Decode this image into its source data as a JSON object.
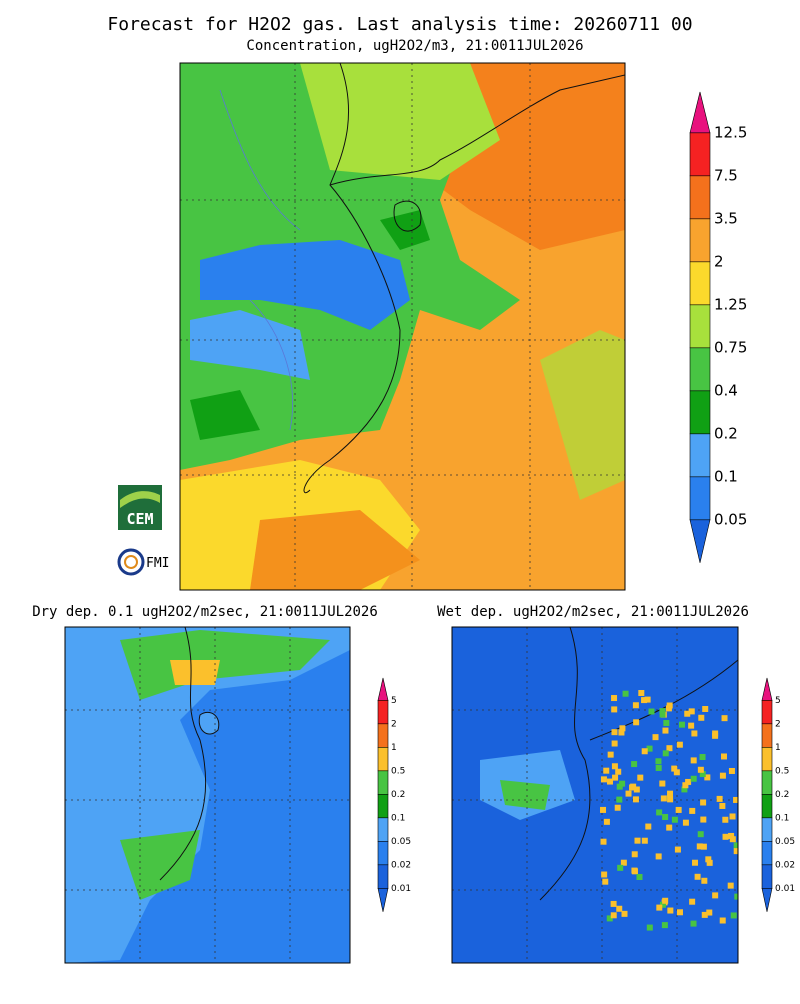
{
  "header": {
    "title": "Forecast for H2O2 gas. Last analysis time: 20260711 00"
  },
  "panels": [
    {
      "title": "Concentration, ugH2O2/m3, 21:0011JUL2026",
      "legend": {
        "labels": [
          "12.5",
          "7.5",
          "3.5",
          "2",
          "1.25",
          "0.75",
          "0.4",
          "0.2",
          "0.1",
          "0.05"
        ],
        "colors": [
          "#e8127e",
          "#f52222",
          "#f4711c",
          "#f8a32e",
          "#fbd92c",
          "#a8e03c",
          "#48c443",
          "#10a014",
          "#4ea3f5",
          "#2a80ee",
          "#1a62dc"
        ]
      }
    },
    {
      "title": "Dry dep. 0.1 ugH2O2/m2sec, 21:0011JUL2026",
      "legend": {
        "labels": [
          "5",
          "2",
          "1",
          "0.5",
          "0.2",
          "0.1",
          "0.05",
          "0.02",
          "0.01"
        ],
        "colors": [
          "#e8127e",
          "#f52222",
          "#f4711c",
          "#fbc02c",
          "#48c443",
          "#10a014",
          "#4ea3f5",
          "#2a80ee",
          "#1a62dc",
          "#1a62dc"
        ]
      }
    },
    {
      "title": "Wet dep. ugH2O2/m2sec, 21:0011JUL2026",
      "legend": {
        "labels": [
          "5",
          "2",
          "1",
          "0.5",
          "0.2",
          "0.1",
          "0.05",
          "0.02",
          "0.01"
        ],
        "colors": [
          "#e8127e",
          "#f52222",
          "#f4711c",
          "#fbc02c",
          "#48c443",
          "#10a014",
          "#4ea3f5",
          "#2a80ee",
          "#1a62dc",
          "#1a62dc"
        ]
      }
    }
  ],
  "logos": [
    "CEM",
    "FMI"
  ]
}
